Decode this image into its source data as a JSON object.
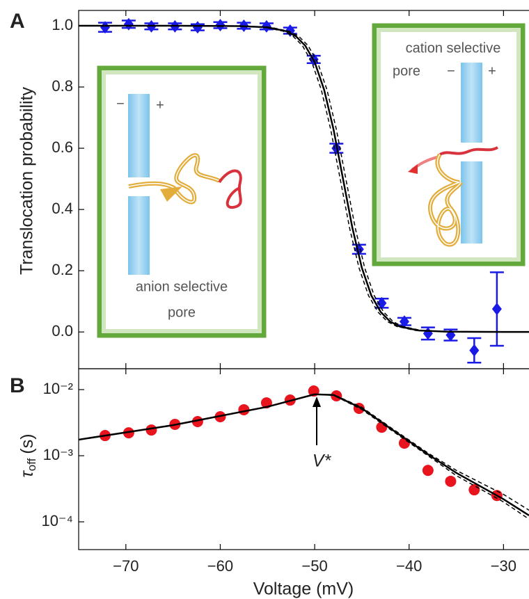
{
  "chart_data": [
    {
      "type": "scatter",
      "panel": "A",
      "ylabel": "Translocation probability",
      "xlim": [
        -75,
        -27.3
      ],
      "ylim": [
        -0.12,
        1.05
      ],
      "xticks": [
        -70,
        -60,
        -50,
        -40,
        -30
      ],
      "yticks": [
        {
          "value": 0,
          "label": "0.0"
        },
        0.2,
        0.4,
        0.6,
        0.8,
        {
          "value": 1,
          "label": "1.0"
        }
      ],
      "series": [
        {
          "marker": "diamond",
          "color": "#1a1ae6",
          "x": [
            -72.2,
            -69.7,
            -67.3,
            -64.8,
            -62.4,
            -60,
            -57.5,
            -55.1,
            -52.6,
            -50.1,
            -47.7,
            -45.3,
            -42.9,
            -40.5,
            -38,
            -35.6,
            -33.1,
            -30.7
          ],
          "values": [
            0.995,
            1.005,
            0.998,
            0.998,
            0.995,
            1.002,
            1.0,
            0.998,
            0.984,
            0.89,
            0.6,
            0.27,
            0.094,
            0.034,
            -0.005,
            -0.01,
            -0.06,
            0.075
          ],
          "errors": [
            0.015,
            0.012,
            0.01,
            0.01,
            0.01,
            0.01,
            0.01,
            0.01,
            0.01,
            0.012,
            0.015,
            0.015,
            0.015,
            0.012,
            0.02,
            0.018,
            0.04,
            0.12
          ]
        },
        {
          "color": "#000000",
          "x": [
            -75,
            -65,
            -58,
            -55,
            -53,
            -52,
            -51,
            -50,
            -49,
            -48,
            -47,
            -46,
            -45,
            -44,
            -43,
            -42,
            -41,
            -39,
            -36,
            -30,
            -27.3
          ],
          "values": [
            1,
            1,
            0.999,
            0.995,
            0.982,
            0.966,
            0.935,
            0.881,
            0.791,
            0.661,
            0.5,
            0.339,
            0.209,
            0.119,
            0.065,
            0.034,
            0.018,
            0.005,
            0.001,
            0,
            0
          ]
        },
        {
          "color": "#000000",
          "dash": true,
          "x": [
            -75,
            -64.7,
            -57.7,
            -54.7,
            -52.7,
            -51.7,
            -50.7,
            -49.7,
            -48.7,
            -47.7,
            -46.7,
            -45.7,
            -44.7,
            -43.7,
            -42.7,
            -41.7,
            -40.7,
            -38.7,
            -35.7,
            -29.7,
            -27.3
          ],
          "values": [
            1,
            1,
            0.999,
            0.995,
            0.982,
            0.966,
            0.935,
            0.881,
            0.791,
            0.661,
            0.5,
            0.339,
            0.209,
            0.119,
            0.065,
            0.034,
            0.018,
            0.005,
            0.001,
            0,
            0
          ]
        },
        {
          "color": "#000000",
          "dash": true,
          "x": [
            -75,
            -65.3,
            -58.3,
            -55.3,
            -53.3,
            -52.3,
            -51.3,
            -50.3,
            -49.3,
            -48.3,
            -47.3,
            -46.3,
            -45.3,
            -44.3,
            -43.3,
            -42.3,
            -41.3,
            -39.3,
            -36.3,
            -30.3,
            -27.3
          ],
          "values": [
            1,
            1,
            0.999,
            0.995,
            0.982,
            0.966,
            0.935,
            0.881,
            0.791,
            0.661,
            0.5,
            0.339,
            0.209,
            0.119,
            0.065,
            0.034,
            0.018,
            0.005,
            0.001,
            0,
            0
          ]
        }
      ],
      "insets": [
        {
          "lines": [
            "cation selective",
            "pore"
          ],
          "minus": "−",
          "plus": "+"
        },
        {
          "lines": [
            "anion selective",
            "pore"
          ],
          "minus": "−",
          "plus": "+"
        }
      ]
    },
    {
      "type": "scatter",
      "panel": "B",
      "log_y": true,
      "ylabel_symbol": "τ",
      "ylabel_subscript": "off",
      "ylabel_unit": "(s)",
      "xlabel": "Voltage (mV)",
      "annotation": "V*",
      "xlim": [
        -75,
        -27.3
      ],
      "ylim": [
        3.8e-05,
        0.0207
      ],
      "xticks": [
        {
          "value": -70,
          "label": "−70"
        },
        {
          "value": -60,
          "label": "−60"
        },
        {
          "value": -50,
          "label": "−50"
        },
        {
          "value": -40,
          "label": "−40"
        },
        {
          "value": -30,
          "label": "−30"
        }
      ],
      "yticks": [
        {
          "value": 0.0001,
          "label": "10⁻⁴"
        },
        {
          "value": 0.001,
          "label": "10⁻³"
        },
        {
          "value": 0.01,
          "label": "10⁻²"
        }
      ],
      "series": [
        {
          "marker": "circle",
          "color": "#e8141e",
          "x": [
            -72.2,
            -69.7,
            -67.3,
            -64.8,
            -62.4,
            -60,
            -57.5,
            -55.1,
            -52.6,
            -50.1,
            -47.7,
            -45.3,
            -42.9,
            -40.5,
            -38,
            -35.6,
            -33.1,
            -30.7
          ],
          "values": [
            0.00202,
            0.00222,
            0.00245,
            0.00298,
            0.00328,
            0.00389,
            0.00496,
            0.0063,
            0.00695,
            0.00952,
            0.00804,
            0.0052,
            0.0027,
            0.00155,
            0.0006,
            0.00041,
            0.000305,
            0.00025
          ]
        },
        {
          "color": "#000000",
          "x": [
            -75,
            -65,
            -55,
            -50,
            -48,
            -45,
            -42,
            -38,
            -35,
            -30,
            -27.3
          ],
          "values": [
            0.00175,
            0.0029,
            0.0055,
            0.0085,
            0.0083,
            0.0052,
            0.0026,
            0.00105,
            0.00055,
            0.00022,
            0.000125
          ]
        },
        {
          "color": "#000000",
          "dash": true,
          "x": [
            -50,
            -48,
            -45,
            -42,
            -38,
            -35,
            -30,
            -27.3
          ],
          "values": [
            0.0085,
            0.0084,
            0.0054,
            0.0027,
            0.0011,
            0.0006,
            0.00026,
            0.00015
          ]
        },
        {
          "color": "#000000",
          "dash": true,
          "x": [
            -50,
            -48,
            -45,
            -42,
            -38,
            -35,
            -30,
            -27.3
          ],
          "values": [
            0.0085,
            0.0082,
            0.005,
            0.0025,
            0.001,
            0.0005,
            0.0002,
            0.00011
          ]
        }
      ]
    }
  ]
}
